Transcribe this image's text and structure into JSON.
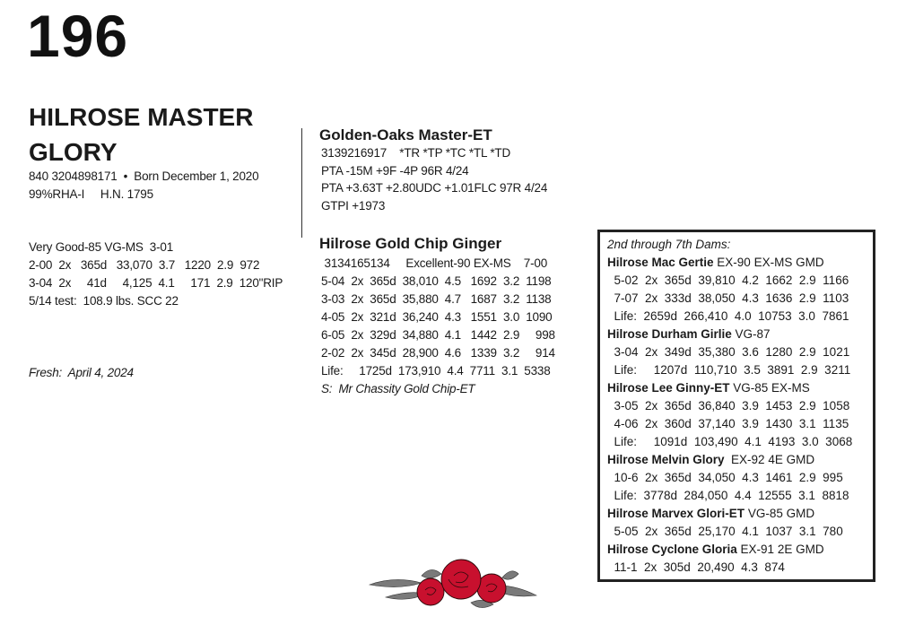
{
  "lot_number": "196",
  "animal": {
    "name_line1": "HILROSE MASTER",
    "name_line2": "GLORY",
    "id_line": "840 3204898171  •  Born December 1, 2020",
    "breed_line": "99%RHA-I     H.N. 1795",
    "classification": "Very Good-85 VG-MS  3-01",
    "records": [
      "2-00  2x   365d   33,070  3.7   1220  2.9  972",
      "3-04  2x     41d     4,125  4.1     171  2.9  120\"RIP"
    ],
    "test": "5/14 test:  108.9 lbs. SCC 22",
    "fresh": "Fresh:  April 4, 2024"
  },
  "sire": {
    "name": "Golden-Oaks Master-ET",
    "lines": [
      "3139216917    *TR *TP *TC *TL *TD",
      "PTA -15M +9F -4P 96R 4/24",
      "PTA +3.63T +2.80UDC +1.01FLC 97R 4/24",
      "GTPI +1973"
    ]
  },
  "dam": {
    "name": "Hilrose Gold Chip Ginger",
    "lines": [
      " 3134165134     Excellent-90 EX-MS    7-00",
      "5-04  2x  365d  38,010  4.5   1692  3.2  1198",
      "3-03  2x  365d  35,880  4.7   1687  3.2  1138",
      "4-05  2x  321d  36,240  4.3   1551  3.0  1090",
      "6-05  2x  329d  34,880  4.1   1442  2.9     998",
      "2-02  2x  345d  28,900  4.6   1339  3.2     914",
      "Life:     1725d  173,910  4.4  7711  3.1  5338"
    ],
    "sire_of_dam": "S:  Mr Chassity Gold Chip-ET"
  },
  "dams_box": {
    "heading": "2nd through 7th Dams:",
    "dams": [
      {
        "name": "Hilrose Mac Gertie",
        "class": " EX-90 EX-MS GMD",
        "records": [
          "  5-02  2x  365d  39,810  4.2  1662  2.9  1166",
          "  7-07  2x  333d  38,050  4.3  1636  2.9  1103",
          "  Life:  2659d  266,410  4.0  10753  3.0  7861"
        ]
      },
      {
        "name": "Hilrose Durham Girlie",
        "class": " VG-87",
        "records": [
          "  3-04  2x  349d  35,380  3.6  1280  2.9  1021",
          "  Life:     1207d  110,710  3.5  3891  2.9  3211"
        ]
      },
      {
        "name": "Hilrose Lee Ginny-ET",
        "class": " VG-85 EX-MS",
        "records": [
          "  3-05  2x  365d  36,840  3.9  1453  2.9  1058",
          "  4-06  2x  360d  37,140  3.9  1430  3.1  1135",
          "  Life:     1091d  103,490  4.1  4193  3.0  3068"
        ]
      },
      {
        "name": "Hilrose Melvin Glory",
        "class": "  EX-92 4E GMD",
        "records": [
          "  10-6  2x  365d  34,050  4.3  1461  2.9  995",
          "  Life:  3778d  284,050  4.4  12555  3.1  8818"
        ]
      },
      {
        "name": "Hilrose Marvex Glori-ET",
        "class": " VG-85 GMD",
        "records": [
          "  5-05  2x  365d  25,170  4.1  1037  3.1  780"
        ]
      },
      {
        "name": "Hilrose Cyclone Gloria",
        "class": " EX-91 2E GMD",
        "records": [
          "  11-1  2x  305d  20,490  4.3  874"
        ]
      }
    ]
  },
  "decoration": {
    "icon": "roses-ornament",
    "rose_color": "#c8102e",
    "leaf_color": "#7a7a7a"
  }
}
